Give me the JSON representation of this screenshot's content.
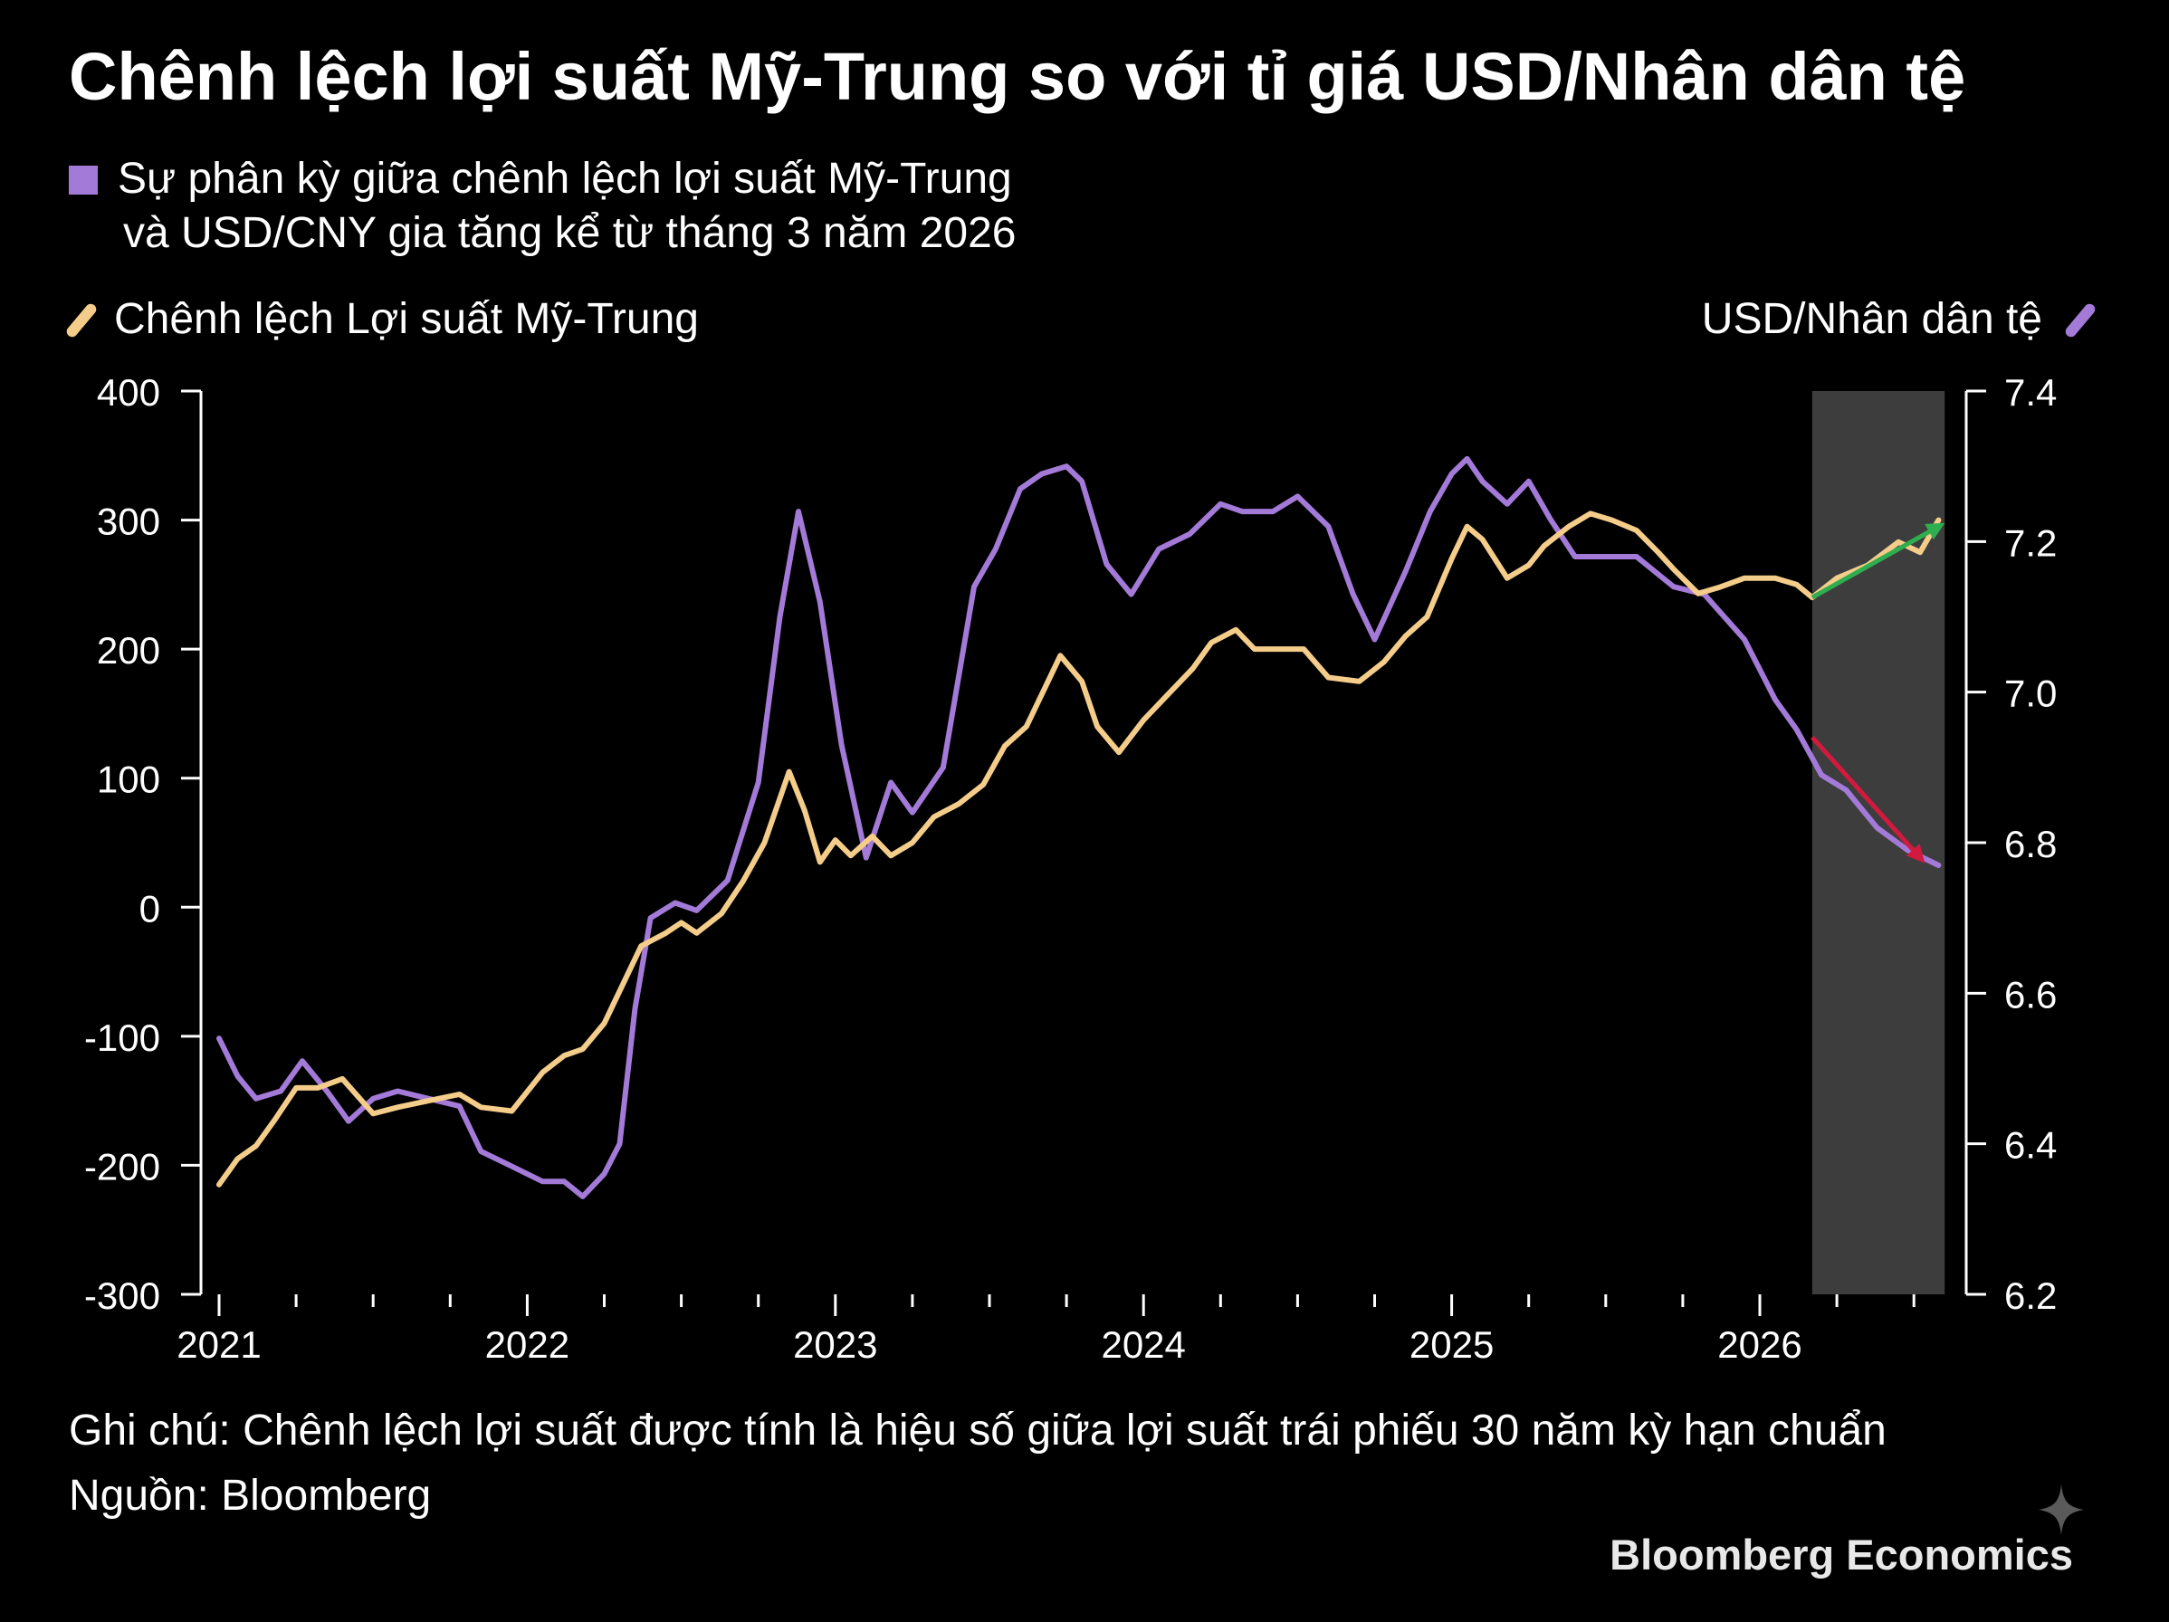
{
  "title": "Chênh lệch lợi suất Mỹ-Trung so với tỉ giá USD/Nhân dân tệ",
  "subtitle_line1": "Sự phân kỳ giữa chênh lệch lợi suất Mỹ-Trung",
  "subtitle_line2": "và USD/CNY gia tăng kể từ tháng 3 năm 2026",
  "note": "Ghi chú: Chênh lệch lợi suất được tính là hiệu số giữa lợi suất trái phiếu 30 năm kỳ hạn chuẩn",
  "source": "Nguồn: Bloomberg",
  "brand": "Bloomberg Economics",
  "colors": {
    "spread": "#f5cd8a",
    "usdcny": "#a47ad9",
    "shade": "#3d3d3d",
    "up_arrow": "#2fae4f",
    "down_arrow": "#d11a3e"
  },
  "icons": {
    "brand_mark": "sparkle-icon"
  },
  "chart_data": {
    "type": "line",
    "legend": {
      "left": "Chênh lệch Lợi suất Mỹ-Trung",
      "right": "USD/Nhân dân tệ"
    },
    "x_ticks": [
      2021,
      2022,
      2023,
      2024,
      2025,
      2026
    ],
    "x_range": [
      2021.0,
      2026.65
    ],
    "y_left": {
      "range": [
        -300,
        400
      ],
      "ticks": [
        400,
        300,
        200,
        100,
        0,
        -100,
        -200,
        -300
      ]
    },
    "y_right": {
      "range": [
        6.2,
        7.4
      ],
      "ticks": [
        "7.4",
        "7.2",
        "7.0",
        "6.8",
        "6.6",
        "6.4",
        "6.2"
      ]
    },
    "shaded_period": [
      2026.17,
      2026.6
    ],
    "series": [
      {
        "name": "Chênh lệch Lợi suất Mỹ-Trung",
        "axis": "left",
        "points": [
          [
            2021.0,
            -215
          ],
          [
            2021.06,
            -195
          ],
          [
            2021.12,
            -185
          ],
          [
            2021.18,
            -165
          ],
          [
            2021.25,
            -140
          ],
          [
            2021.32,
            -140
          ],
          [
            2021.4,
            -133
          ],
          [
            2021.5,
            -160
          ],
          [
            2021.58,
            -155
          ],
          [
            2021.68,
            -150
          ],
          [
            2021.78,
            -145
          ],
          [
            2021.85,
            -155
          ],
          [
            2021.95,
            -158
          ],
          [
            2022.05,
            -128
          ],
          [
            2022.12,
            -115
          ],
          [
            2022.18,
            -110
          ],
          [
            2022.25,
            -90
          ],
          [
            2022.32,
            -55
          ],
          [
            2022.37,
            -30
          ],
          [
            2022.45,
            -20
          ],
          [
            2022.5,
            -12
          ],
          [
            2022.55,
            -20
          ],
          [
            2022.63,
            -5
          ],
          [
            2022.7,
            20
          ],
          [
            2022.77,
            50
          ],
          [
            2022.85,
            105
          ],
          [
            2022.9,
            75
          ],
          [
            2022.95,
            35
          ],
          [
            2023.0,
            52
          ],
          [
            2023.05,
            40
          ],
          [
            2023.12,
            55
          ],
          [
            2023.18,
            40
          ],
          [
            2023.25,
            50
          ],
          [
            2023.32,
            70
          ],
          [
            2023.4,
            80
          ],
          [
            2023.48,
            95
          ],
          [
            2023.55,
            125
          ],
          [
            2023.62,
            140
          ],
          [
            2023.68,
            170
          ],
          [
            2023.73,
            195
          ],
          [
            2023.8,
            175
          ],
          [
            2023.85,
            140
          ],
          [
            2023.92,
            120
          ],
          [
            2024.0,
            145
          ],
          [
            2024.08,
            165
          ],
          [
            2024.16,
            185
          ],
          [
            2024.22,
            205
          ],
          [
            2024.3,
            215
          ],
          [
            2024.36,
            200
          ],
          [
            2024.45,
            200
          ],
          [
            2024.52,
            200
          ],
          [
            2024.6,
            178
          ],
          [
            2024.7,
            175
          ],
          [
            2024.78,
            190
          ],
          [
            2024.85,
            210
          ],
          [
            2024.92,
            225
          ],
          [
            2025.0,
            270
          ],
          [
            2025.05,
            295
          ],
          [
            2025.1,
            285
          ],
          [
            2025.18,
            255
          ],
          [
            2025.25,
            265
          ],
          [
            2025.3,
            280
          ],
          [
            2025.38,
            295
          ],
          [
            2025.45,
            305
          ],
          [
            2025.52,
            300
          ],
          [
            2025.6,
            292
          ],
          [
            2025.67,
            275
          ],
          [
            2025.72,
            262
          ],
          [
            2025.8,
            243
          ],
          [
            2025.87,
            248
          ],
          [
            2025.95,
            255
          ],
          [
            2026.05,
            255
          ],
          [
            2026.12,
            250
          ],
          [
            2026.17,
            240
          ],
          [
            2026.25,
            255
          ],
          [
            2026.35,
            265
          ],
          [
            2026.45,
            283
          ],
          [
            2026.52,
            275
          ],
          [
            2026.58,
            300
          ]
        ]
      },
      {
        "name": "USD/Nhân dân tệ",
        "axis": "right",
        "points": [
          [
            2021.0,
            6.54
          ],
          [
            2021.06,
            6.49
          ],
          [
            2021.12,
            6.46
          ],
          [
            2021.2,
            6.47
          ],
          [
            2021.27,
            6.51
          ],
          [
            2021.35,
            6.47
          ],
          [
            2021.42,
            6.43
          ],
          [
            2021.5,
            6.46
          ],
          [
            2021.58,
            6.47
          ],
          [
            2021.68,
            6.46
          ],
          [
            2021.78,
            6.45
          ],
          [
            2021.85,
            6.39
          ],
          [
            2021.95,
            6.37
          ],
          [
            2022.05,
            6.35
          ],
          [
            2022.12,
            6.35
          ],
          [
            2022.18,
            6.33
          ],
          [
            2022.25,
            6.36
          ],
          [
            2022.3,
            6.4
          ],
          [
            2022.35,
            6.58
          ],
          [
            2022.4,
            6.7
          ],
          [
            2022.48,
            6.72
          ],
          [
            2022.55,
            6.71
          ],
          [
            2022.65,
            6.75
          ],
          [
            2022.75,
            6.88
          ],
          [
            2022.82,
            7.1
          ],
          [
            2022.88,
            7.24
          ],
          [
            2022.95,
            7.12
          ],
          [
            2023.02,
            6.93
          ],
          [
            2023.1,
            6.78
          ],
          [
            2023.18,
            6.88
          ],
          [
            2023.25,
            6.84
          ],
          [
            2023.35,
            6.9
          ],
          [
            2023.45,
            7.14
          ],
          [
            2023.52,
            7.19
          ],
          [
            2023.6,
            7.27
          ],
          [
            2023.67,
            7.29
          ],
          [
            2023.75,
            7.3
          ],
          [
            2023.8,
            7.28
          ],
          [
            2023.88,
            7.17
          ],
          [
            2023.96,
            7.13
          ],
          [
            2024.05,
            7.19
          ],
          [
            2024.15,
            7.21
          ],
          [
            2024.25,
            7.25
          ],
          [
            2024.32,
            7.24
          ],
          [
            2024.42,
            7.24
          ],
          [
            2024.5,
            7.26
          ],
          [
            2024.6,
            7.22
          ],
          [
            2024.68,
            7.13
          ],
          [
            2024.75,
            7.07
          ],
          [
            2024.85,
            7.16
          ],
          [
            2024.93,
            7.24
          ],
          [
            2025.0,
            7.29
          ],
          [
            2025.05,
            7.31
          ],
          [
            2025.1,
            7.28
          ],
          [
            2025.18,
            7.25
          ],
          [
            2025.25,
            7.28
          ],
          [
            2025.32,
            7.23
          ],
          [
            2025.4,
            7.18
          ],
          [
            2025.5,
            7.18
          ],
          [
            2025.6,
            7.18
          ],
          [
            2025.72,
            7.14
          ],
          [
            2025.82,
            7.13
          ],
          [
            2025.95,
            7.07
          ],
          [
            2026.05,
            6.99
          ],
          [
            2026.12,
            6.95
          ],
          [
            2026.2,
            6.89
          ],
          [
            2026.28,
            6.87
          ],
          [
            2026.38,
            6.82
          ],
          [
            2026.48,
            6.79
          ],
          [
            2026.58,
            6.77
          ]
        ]
      }
    ],
    "arrows": [
      {
        "axis": "left",
        "from": [
          2026.17,
          240
        ],
        "to": [
          2026.58,
          295
        ],
        "color": "up_arrow"
      },
      {
        "axis": "right",
        "from": [
          2026.17,
          6.94
        ],
        "to": [
          2026.52,
          6.78
        ],
        "color": "down_arrow"
      }
    ]
  }
}
